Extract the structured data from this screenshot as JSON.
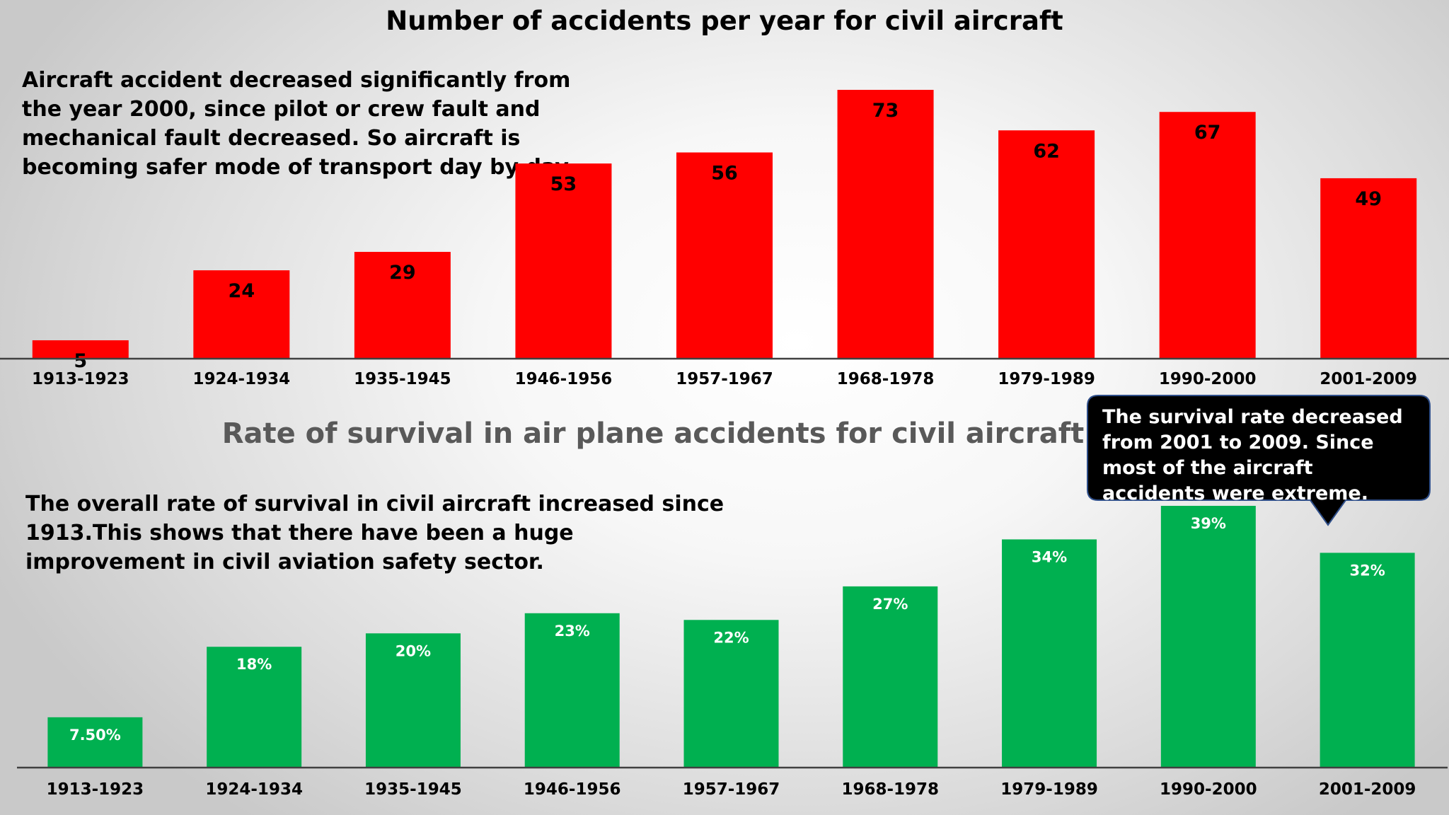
{
  "top_title": "Number of accidents per year for civil aircraft",
  "top_note": "Aircraft accident decreased significantly from the year 2000, since pilot or crew fault and mechanical fault decreased. So aircraft is becoming safer mode of transport day by day.",
  "bottom_title": "Rate of survival in air plane accidents for civil aircraft",
  "bottom_note": "The overall rate of survival in civil aircraft increased since 1913.This shows that there have been a huge improvement in civil aviation safety sector.",
  "callout_text": "The survival rate decreased from 2001 to 2009. Since most of the aircraft accidents were extreme.",
  "chart_data": [
    {
      "type": "bar",
      "title": "Number of accidents per year for civil aircraft",
      "categories": [
        "1913-1923",
        "1924-1934",
        "1935-1945",
        "1946-1956",
        "1957-1967",
        "1968-1978",
        "1979-1989",
        "1990-2000",
        "2001-2009"
      ],
      "values": [
        5,
        24,
        29,
        53,
        56,
        73,
        62,
        67,
        49
      ],
      "data_labels": [
        "5",
        "24",
        "29",
        "53",
        "56",
        "73",
        "62",
        "67",
        "49"
      ],
      "bar_color": "#ff0000",
      "label_color": "#000000",
      "ylim": [
        0,
        73
      ],
      "grid": false,
      "legend": "none"
    },
    {
      "type": "bar",
      "title": "Rate of survival in air plane accidents for civil aircraft",
      "categories": [
        "1913-1923",
        "1924-1934",
        "1935-1945",
        "1946-1956",
        "1957-1967",
        "1968-1978",
        "1979-1989",
        "1990-2000",
        "2001-2009"
      ],
      "values": [
        7.5,
        18,
        20,
        23,
        22,
        27,
        34,
        39,
        32
      ],
      "data_labels": [
        "7.50%",
        "18%",
        "20%",
        "23%",
        "22%",
        "27%",
        "34%",
        "39%",
        "32%"
      ],
      "bar_color": "#00b050",
      "label_color": "#ffffff",
      "ylim": [
        0,
        39
      ],
      "grid": false,
      "legend": "none"
    }
  ]
}
